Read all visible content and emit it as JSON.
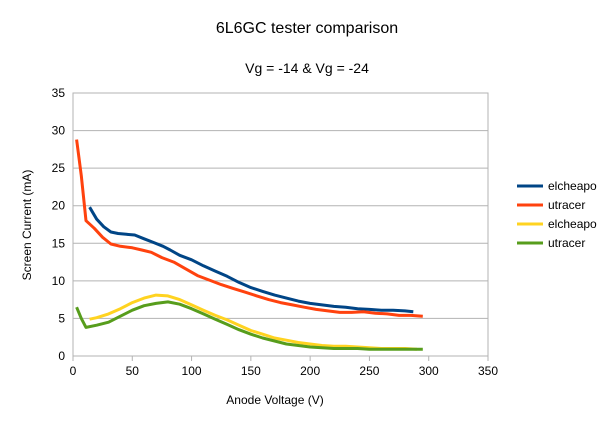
{
  "chart_data": {
    "type": "line",
    "title": "6L6GC tester comparison",
    "subtitle": "Vg = -14 & Vg = -24",
    "xlabel": "Anode Voltage (V)",
    "ylabel": "Screen Current (mA)",
    "xlim": [
      0,
      350
    ],
    "ylim": [
      0,
      35
    ],
    "xticks": [
      0,
      50,
      100,
      150,
      200,
      250,
      300,
      350
    ],
    "yticks": [
      0,
      5,
      10,
      15,
      20,
      25,
      30,
      35
    ],
    "grid": "horizontal",
    "legend_position": "right",
    "series": [
      {
        "name": "elcheapo",
        "color": "#004586",
        "points": [
          [
            14,
            19.8
          ],
          [
            20,
            18.2
          ],
          [
            26,
            17.2
          ],
          [
            32,
            16.5
          ],
          [
            38,
            16.3
          ],
          [
            45,
            16.2
          ],
          [
            52,
            16.1
          ],
          [
            60,
            15.6
          ],
          [
            68,
            15.1
          ],
          [
            76,
            14.6
          ],
          [
            82,
            14.1
          ],
          [
            90,
            13.4
          ],
          [
            100,
            12.8
          ],
          [
            110,
            12.0
          ],
          [
            120,
            11.3
          ],
          [
            130,
            10.6
          ],
          [
            140,
            9.8
          ],
          [
            150,
            9.1
          ],
          [
            160,
            8.6
          ],
          [
            170,
            8.1
          ],
          [
            180,
            7.7
          ],
          [
            190,
            7.3
          ],
          [
            200,
            7.0
          ],
          [
            210,
            6.8
          ],
          [
            220,
            6.6
          ],
          [
            230,
            6.5
          ],
          [
            240,
            6.3
          ],
          [
            250,
            6.2
          ],
          [
            260,
            6.1
          ],
          [
            270,
            6.1
          ],
          [
            280,
            6.0
          ],
          [
            287,
            5.9
          ]
        ]
      },
      {
        "name": "utracer",
        "color": "#ff420e",
        "points": [
          [
            3,
            28.8
          ],
          [
            7,
            24.0
          ],
          [
            11,
            18.0
          ],
          [
            18,
            17.0
          ],
          [
            25,
            15.8
          ],
          [
            32,
            14.9
          ],
          [
            40,
            14.6
          ],
          [
            50,
            14.4
          ],
          [
            58,
            14.1
          ],
          [
            66,
            13.8
          ],
          [
            75,
            13.1
          ],
          [
            85,
            12.5
          ],
          [
            95,
            11.6
          ],
          [
            105,
            10.7
          ],
          [
            115,
            10.1
          ],
          [
            125,
            9.5
          ],
          [
            135,
            9.0
          ],
          [
            145,
            8.5
          ],
          [
            155,
            8.0
          ],
          [
            165,
            7.5
          ],
          [
            175,
            7.1
          ],
          [
            185,
            6.8
          ],
          [
            195,
            6.5
          ],
          [
            205,
            6.2
          ],
          [
            215,
            6.0
          ],
          [
            225,
            5.8
          ],
          [
            235,
            5.8
          ],
          [
            245,
            5.9
          ],
          [
            255,
            5.7
          ],
          [
            265,
            5.6
          ],
          [
            275,
            5.4
          ],
          [
            285,
            5.4
          ],
          [
            295,
            5.3
          ]
        ]
      },
      {
        "name": "elcheapo",
        "color": "#ffd320",
        "points": [
          [
            14,
            4.9
          ],
          [
            20,
            5.1
          ],
          [
            30,
            5.6
          ],
          [
            40,
            6.3
          ],
          [
            50,
            7.1
          ],
          [
            60,
            7.7
          ],
          [
            70,
            8.1
          ],
          [
            80,
            8.0
          ],
          [
            90,
            7.5
          ],
          [
            100,
            6.8
          ],
          [
            110,
            6.1
          ],
          [
            120,
            5.4
          ],
          [
            130,
            4.8
          ],
          [
            140,
            4.1
          ],
          [
            150,
            3.4
          ],
          [
            160,
            2.9
          ],
          [
            170,
            2.4
          ],
          [
            180,
            2.1
          ],
          [
            190,
            1.8
          ],
          [
            200,
            1.6
          ],
          [
            210,
            1.4
          ],
          [
            220,
            1.3
          ],
          [
            230,
            1.3
          ],
          [
            240,
            1.2
          ],
          [
            250,
            1.1
          ],
          [
            260,
            1.0
          ],
          [
            270,
            1.0
          ],
          [
            280,
            1.0
          ],
          [
            290,
            0.9
          ]
        ]
      },
      {
        "name": "utracer",
        "color": "#579d1c",
        "points": [
          [
            3,
            6.5
          ],
          [
            7,
            5.0
          ],
          [
            11,
            3.8
          ],
          [
            20,
            4.1
          ],
          [
            30,
            4.5
          ],
          [
            40,
            5.3
          ],
          [
            50,
            6.1
          ],
          [
            60,
            6.7
          ],
          [
            70,
            7.0
          ],
          [
            80,
            7.2
          ],
          [
            90,
            6.9
          ],
          [
            100,
            6.3
          ],
          [
            110,
            5.6
          ],
          [
            120,
            4.9
          ],
          [
            130,
            4.2
          ],
          [
            140,
            3.5
          ],
          [
            150,
            2.9
          ],
          [
            160,
            2.4
          ],
          [
            170,
            2.0
          ],
          [
            180,
            1.6
          ],
          [
            190,
            1.4
          ],
          [
            200,
            1.2
          ],
          [
            210,
            1.1
          ],
          [
            220,
            1.0
          ],
          [
            230,
            1.0
          ],
          [
            240,
            1.0
          ],
          [
            250,
            0.9
          ],
          [
            260,
            0.9
          ],
          [
            270,
            0.9
          ],
          [
            280,
            0.9
          ],
          [
            290,
            0.9
          ],
          [
            295,
            0.9
          ]
        ]
      }
    ]
  }
}
